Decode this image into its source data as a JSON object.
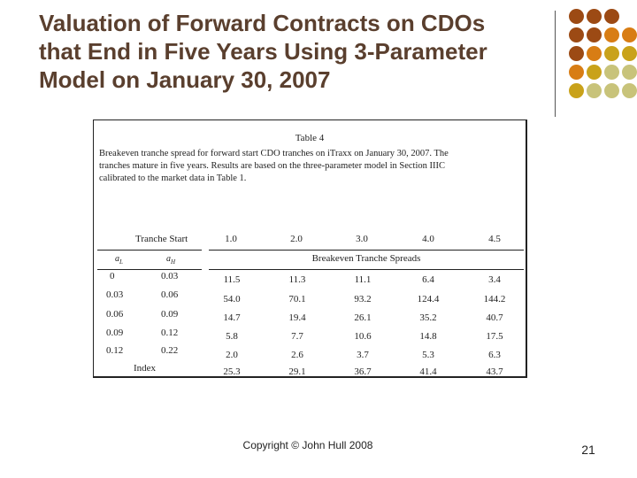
{
  "slide": {
    "title_lines": [
      "Valuation of Forward Contracts on CDOs",
      "that End in Five Years Using 3-Parameter",
      "Model on January 30, 2007"
    ],
    "footer": "Copyright © John Hull 2008",
    "page_number": "21"
  },
  "decoration": {
    "dot_colors": {
      "dark_brown": "#9c4a14",
      "orange": "#d87d14",
      "gold": "#c9a21a",
      "olive": "#c8c37a"
    }
  },
  "table": {
    "caption_title": "Table 4",
    "caption_lines": [
      "Breakeven tranche spread for forward start CDO tranches on iTraxx on January 30, 2007. The",
      "tranches mature in five years. Results are based on the three-parameter model in Section IIIC",
      "calibrated to the market data in Table 1."
    ],
    "tranche_start_label": "Tranche Start",
    "start_years": [
      "1.0",
      "2.0",
      "3.0",
      "4.0",
      "4.5"
    ],
    "aL_label": "a",
    "aL_sub": "L",
    "aH_label": "a",
    "aH_sub": "H",
    "spreads_header": "Breakeven Tranche Spreads",
    "rows": [
      {
        "aL": "0",
        "aH": "0.03",
        "values": [
          "11.5",
          "11.3",
          "11.1",
          "6.4",
          "3.4"
        ]
      },
      {
        "aL": "0.03",
        "aH": "0.06",
        "values": [
          "54.0",
          "70.1",
          "93.2",
          "124.4",
          "144.2"
        ]
      },
      {
        "aL": "0.06",
        "aH": "0.09",
        "values": [
          "14.7",
          "19.4",
          "26.1",
          "35.2",
          "40.7"
        ]
      },
      {
        "aL": "0.09",
        "aH": "0.12",
        "values": [
          "5.8",
          "7.7",
          "10.6",
          "14.8",
          "17.5"
        ]
      },
      {
        "aL": "0.12",
        "aH": "0.22",
        "values": [
          "2.0",
          "2.6",
          "3.7",
          "5.3",
          "6.3"
        ]
      }
    ],
    "index_row": {
      "label": "Index",
      "values": [
        "25.3",
        "29.1",
        "36.7",
        "41.4",
        "43.7"
      ]
    }
  }
}
